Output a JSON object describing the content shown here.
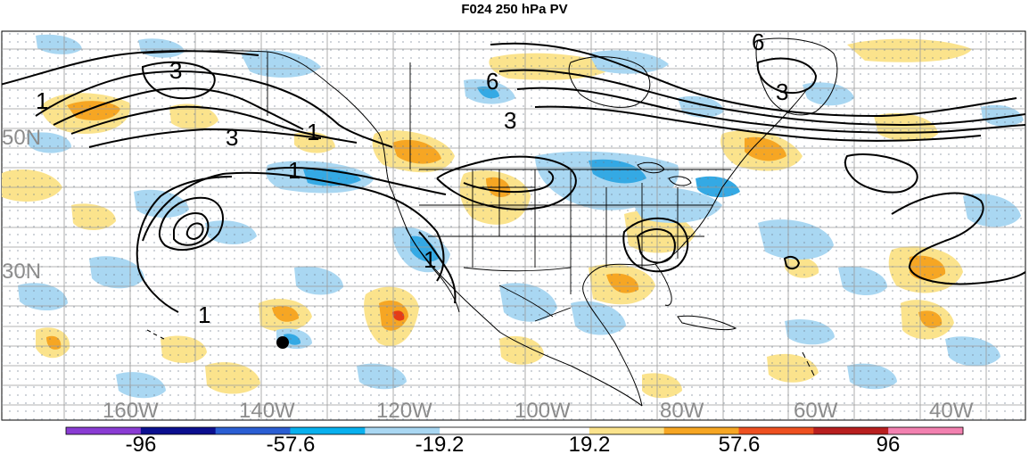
{
  "title": "F024 250 hPa PV",
  "map": {
    "lat_labels": [
      "50N",
      "30N"
    ],
    "lon_labels": [
      "160W",
      "140W",
      "120W",
      "100W",
      "80W",
      "60W",
      "40W"
    ],
    "contour_labels": [
      "1",
      "3",
      "3",
      "3",
      "6",
      "1",
      "1",
      "1",
      "6",
      "3",
      "1"
    ],
    "colors": {
      "ocean": "#ffffff",
      "grid": "#9a9a9a",
      "coast": "#000000",
      "contour": "#000000",
      "pos_light": "#fbe38c",
      "pos_mid": "#f6a623",
      "pos_strong": "#e53c17",
      "neg_light": "#a9d7f2",
      "neg_mid": "#34a9e4",
      "axis_label": "#8c8c8c"
    },
    "marker": "filled-circle"
  },
  "colorbar": {
    "tick_labels": [
      "-96",
      "-57.6",
      "-19.2",
      "19.2",
      "57.6",
      "96"
    ],
    "segment_colors": [
      "#8a3cd3",
      "#0b0f8f",
      "#2a5ed3",
      "#08b0ee",
      "#a9d7f2",
      "#ffffff",
      "#ffffff",
      "#fbe38c",
      "#f6a623",
      "#ee5020",
      "#b81f1f",
      "#f281b0"
    ]
  }
}
